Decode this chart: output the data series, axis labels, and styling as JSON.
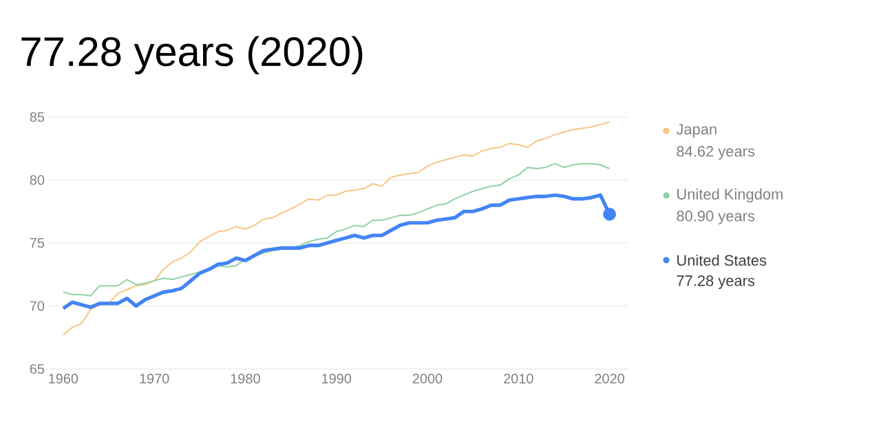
{
  "chart_data": {
    "type": "line",
    "title": "77.28 years (2020)",
    "x": [
      1960,
      1961,
      1962,
      1963,
      1964,
      1965,
      1966,
      1967,
      1968,
      1969,
      1970,
      1971,
      1972,
      1973,
      1974,
      1975,
      1976,
      1977,
      1978,
      1979,
      1980,
      1981,
      1982,
      1983,
      1984,
      1985,
      1986,
      1987,
      1988,
      1989,
      1990,
      1991,
      1992,
      1993,
      1994,
      1995,
      1996,
      1997,
      1998,
      1999,
      2000,
      2001,
      2002,
      2003,
      2004,
      2005,
      2006,
      2007,
      2008,
      2009,
      2010,
      2011,
      2012,
      2013,
      2014,
      2015,
      2016,
      2017,
      2018,
      2019,
      2020
    ],
    "series": [
      {
        "name": "Japan",
        "color": "#f5c782",
        "values": [
          67.7,
          68.3,
          68.6,
          69.7,
          70.1,
          70.2,
          71.0,
          71.3,
          71.6,
          71.7,
          72.0,
          72.9,
          73.5,
          73.8,
          74.3,
          75.1,
          75.5,
          75.9,
          76.0,
          76.3,
          76.1,
          76.4,
          76.9,
          77.0,
          77.4,
          77.7,
          78.1,
          78.5,
          78.4,
          78.8,
          78.8,
          79.1,
          79.2,
          79.3,
          79.7,
          79.5,
          80.2,
          80.4,
          80.5,
          80.6,
          81.1,
          81.4,
          81.6,
          81.8,
          82.0,
          81.9,
          82.3,
          82.5,
          82.6,
          82.9,
          82.8,
          82.6,
          83.1,
          83.3,
          83.6,
          83.8,
          84.0,
          84.1,
          84.2,
          84.4,
          84.62
        ]
      },
      {
        "name": "United Kingdom",
        "color": "#8fd1a3",
        "values": [
          71.1,
          70.9,
          70.9,
          70.8,
          71.6,
          71.6,
          71.6,
          72.1,
          71.7,
          71.8,
          72.0,
          72.2,
          72.1,
          72.3,
          72.5,
          72.7,
          null,
          73.2,
          73.1,
          73.2,
          73.7,
          null,
          74.2,
          74.4,
          74.7,
          74.6,
          74.8,
          75.1,
          75.3,
          75.4,
          75.9,
          76.1,
          76.4,
          76.3,
          76.8,
          76.8,
          77.0,
          77.2,
          77.2,
          77.4,
          77.7,
          78.0,
          78.1,
          78.5,
          78.8,
          79.1,
          79.3,
          79.5,
          79.6,
          80.1,
          80.4,
          81.0,
          80.9,
          81.0,
          81.3,
          81.0,
          81.2,
          81.3,
          81.3,
          81.2,
          80.9
        ]
      },
      {
        "name": "United States",
        "color": "#4285f4",
        "values": [
          69.8,
          70.3,
          70.1,
          69.9,
          70.2,
          70.2,
          70.2,
          70.6,
          70.0,
          70.5,
          70.8,
          71.1,
          71.2,
          71.4,
          72.0,
          72.6,
          72.9,
          73.3,
          73.4,
          73.8,
          73.6,
          74.0,
          74.4,
          74.5,
          74.6,
          74.6,
          74.6,
          74.8,
          74.8,
          75.0,
          75.2,
          75.4,
          75.6,
          75.4,
          75.6,
          75.6,
          76.0,
          76.4,
          76.6,
          76.6,
          76.6,
          76.8,
          76.9,
          77.0,
          77.5,
          77.5,
          77.7,
          78.0,
          78.0,
          78.4,
          78.5,
          78.6,
          78.7,
          78.7,
          78.8,
          78.7,
          78.5,
          78.5,
          78.6,
          78.8,
          77.28
        ]
      },
      {
        "type": "scatter",
        "color": "#4285f4",
        "x": [
          2020
        ],
        "values": [
          77.28
        ]
      }
    ],
    "annotations": [
      "84.62 years",
      "80.90 years",
      "77.28 years"
    ],
    "xlim": [
      1958.5,
      2022
    ],
    "xticks": [
      1960,
      1970,
      1980,
      1990,
      2000,
      2010,
      2020
    ],
    "ylim": [
      65,
      85
    ],
    "yticks": [
      65,
      70,
      75,
      80,
      85
    ],
    "grid": "y",
    "legend": "right"
  }
}
